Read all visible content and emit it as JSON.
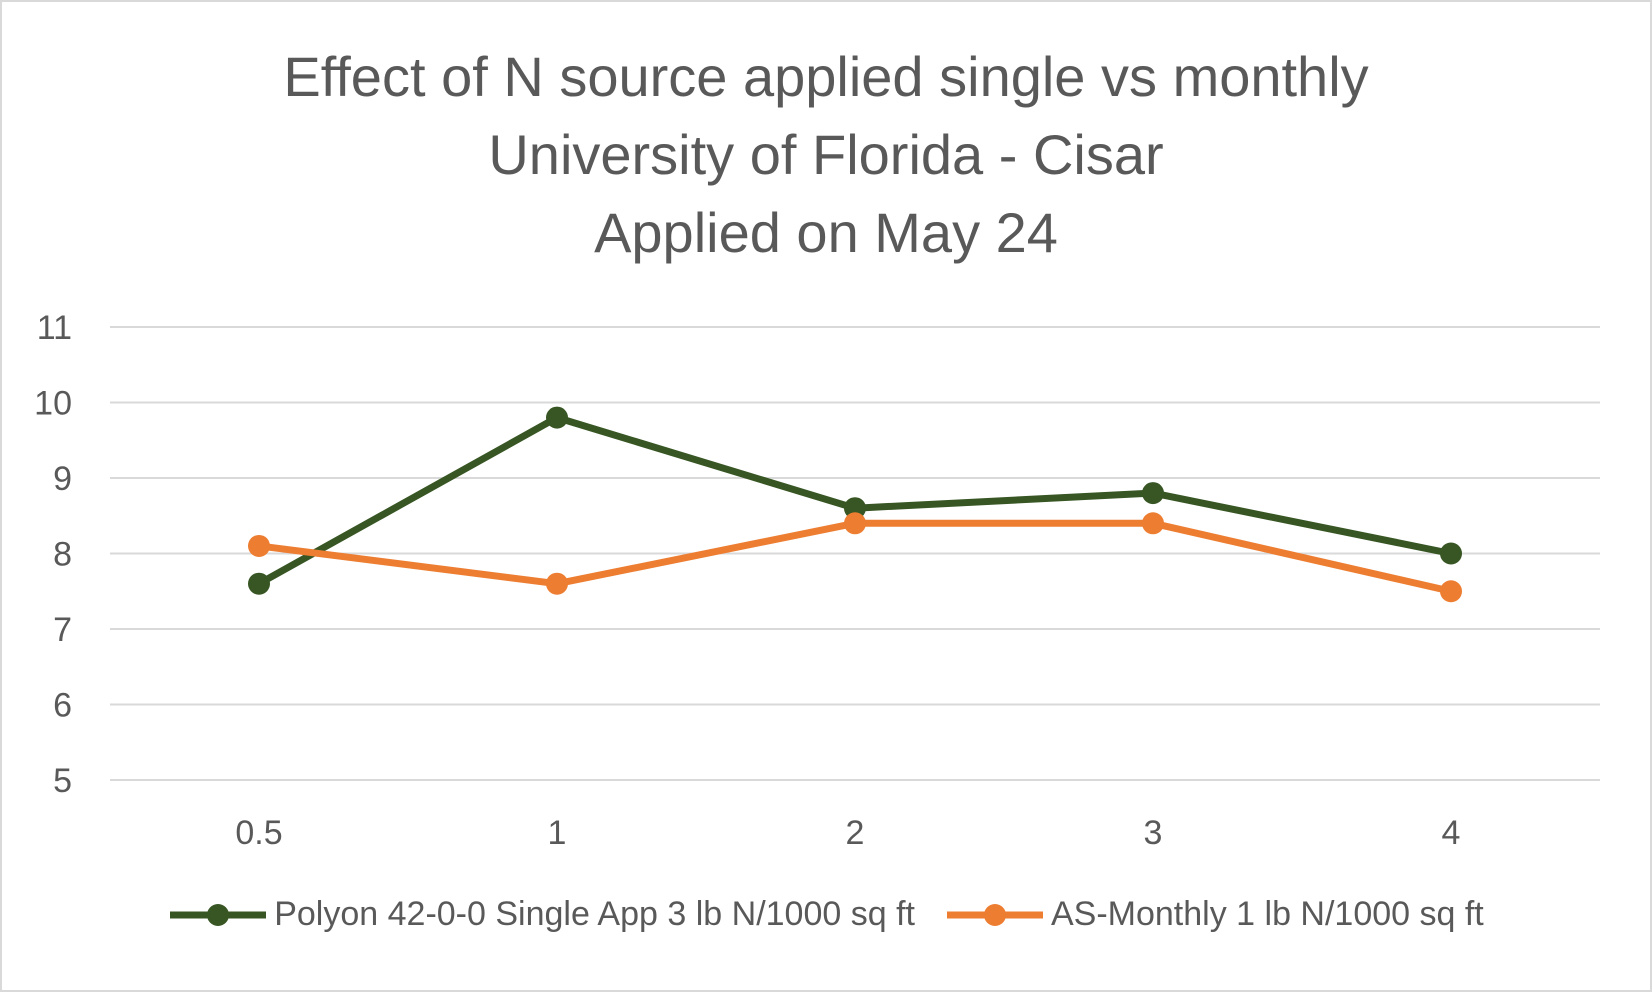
{
  "chart_data": {
    "type": "line",
    "title_lines": [
      "Effect of N source applied single vs monthly",
      "University of Florida - Cisar",
      "Applied on May 24"
    ],
    "categories": [
      "0.5",
      "1",
      "2",
      "3",
      "4"
    ],
    "ylim": [
      5,
      11
    ],
    "yticks": [
      "5",
      "6",
      "7",
      "8",
      "9",
      "10",
      "11"
    ],
    "grid": true,
    "legend_position": "bottom",
    "series": [
      {
        "name": "Polyon 42-0-0 Single App 3 lb N/1000 sq ft",
        "color": "#375623",
        "values": [
          7.6,
          9.8,
          8.6,
          8.8,
          8.0
        ]
      },
      {
        "name": "AS-Monthly 1 lb N/1000 sq ft",
        "color": "#ed7d31",
        "values": [
          8.1,
          7.6,
          8.4,
          8.4,
          7.5
        ]
      }
    ]
  }
}
